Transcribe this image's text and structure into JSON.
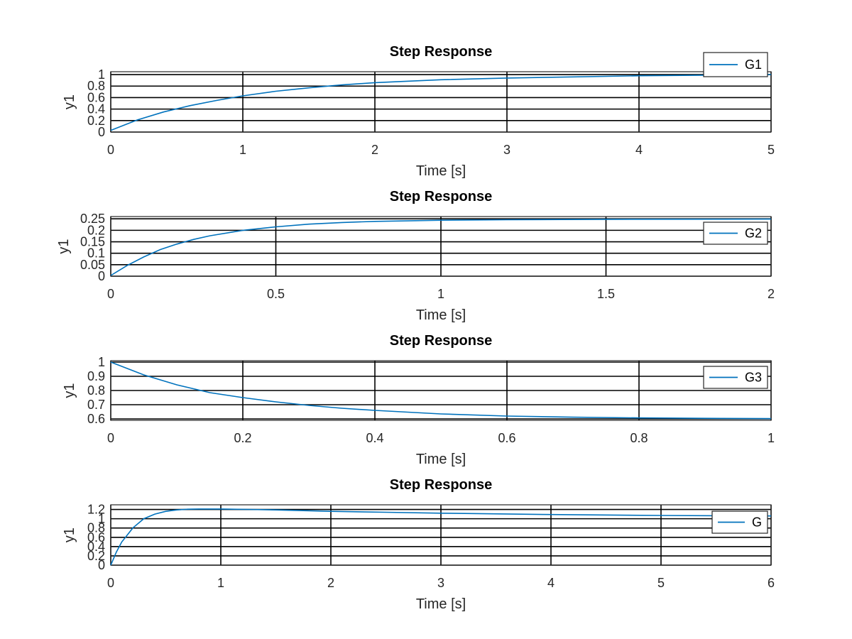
{
  "line_color": "#0072bd",
  "grid_color": "#000000",
  "chart_data": [
    {
      "type": "line",
      "title": "Step Response",
      "xlabel": "Time [s]",
      "ylabel": "y1",
      "xlim": [
        0,
        5
      ],
      "ylim": [
        0,
        1.05
      ],
      "xticks": [
        0,
        1,
        2,
        3,
        4,
        5
      ],
      "xtick_labels": [
        "0",
        "1",
        "2",
        "3",
        "4",
        "5"
      ],
      "yticks": [
        0,
        0.2,
        0.4,
        0.6,
        0.8,
        1
      ],
      "ytick_labels": [
        "0",
        "0.2",
        "0.4",
        "0.6",
        "0.8",
        "1"
      ],
      "grid": true,
      "legend_position": "top-right",
      "series": [
        {
          "name": "G1",
          "x": [
            0,
            0.2,
            0.4,
            0.6,
            0.8,
            1.0,
            1.25,
            1.5,
            1.75,
            2.0,
            2.5,
            3.0,
            3.5,
            4.0,
            4.5,
            5.0
          ],
          "y": [
            0.03,
            0.21,
            0.35,
            0.46,
            0.55,
            0.63,
            0.71,
            0.77,
            0.82,
            0.86,
            0.91,
            0.94,
            0.96,
            0.98,
            0.99,
            1.0
          ]
        }
      ]
    },
    {
      "type": "line",
      "title": "Step Response",
      "xlabel": "Time [s]",
      "ylabel": "y1",
      "xlim": [
        0,
        2
      ],
      "ylim": [
        0,
        0.26
      ],
      "xticks": [
        0,
        0.5,
        1,
        1.5,
        2
      ],
      "xtick_labels": [
        "0",
        "0.5",
        "1",
        "1.5",
        "2"
      ],
      "yticks": [
        0,
        0.05,
        0.1,
        0.15,
        0.2,
        0.25
      ],
      "ytick_labels": [
        "0",
        "0.05",
        "0.1",
        "0.15",
        "0.2",
        "0.25"
      ],
      "grid": true,
      "legend_position": "right",
      "series": [
        {
          "name": "G2",
          "x": [
            0,
            0.05,
            0.1,
            0.15,
            0.2,
            0.25,
            0.3,
            0.4,
            0.5,
            0.6,
            0.7,
            0.8,
            1.0,
            1.2,
            1.5,
            2.0
          ],
          "y": [
            0.003,
            0.047,
            0.084,
            0.116,
            0.14,
            0.16,
            0.176,
            0.2,
            0.215,
            0.227,
            0.234,
            0.239,
            0.244,
            0.246,
            0.248,
            0.249
          ]
        }
      ]
    },
    {
      "type": "line",
      "title": "Step Response",
      "xlabel": "Time [s]",
      "ylabel": "y1",
      "xlim": [
        0,
        1
      ],
      "ylim": [
        0.59,
        1.01
      ],
      "xticks": [
        0,
        0.2,
        0.4,
        0.6,
        0.8,
        1
      ],
      "xtick_labels": [
        "0",
        "0.2",
        "0.4",
        "0.6",
        "0.8",
        "1"
      ],
      "yticks": [
        0.6,
        0.7,
        0.8,
        0.9,
        1
      ],
      "ytick_labels": [
        "0.6",
        "0.7",
        "0.8",
        "0.9",
        "1"
      ],
      "grid": true,
      "legend_position": "right",
      "series": [
        {
          "name": "G3",
          "x": [
            0,
            0.05,
            0.1,
            0.15,
            0.2,
            0.25,
            0.3,
            0.35,
            0.4,
            0.5,
            0.6,
            0.7,
            0.8,
            0.9,
            1.0
          ],
          "y": [
            1.0,
            0.91,
            0.84,
            0.785,
            0.75,
            0.72,
            0.695,
            0.675,
            0.66,
            0.635,
            0.62,
            0.612,
            0.607,
            0.604,
            0.602
          ]
        }
      ]
    },
    {
      "type": "line",
      "title": "Step Response",
      "xlabel": "Time [s]",
      "ylabel": "y1",
      "xlim": [
        0,
        6
      ],
      "ylim": [
        0,
        1.3
      ],
      "xticks": [
        0,
        1,
        2,
        3,
        4,
        5,
        6
      ],
      "xtick_labels": [
        "0",
        "1",
        "2",
        "3",
        "4",
        "5",
        "6"
      ],
      "yticks": [
        0,
        0.2,
        0.4,
        0.6,
        0.8,
        1,
        1.2
      ],
      "ytick_labels": [
        "0",
        "0.2",
        "0.4",
        "0.6",
        "0.8",
        "1",
        "1.2"
      ],
      "grid": true,
      "legend_position": "right",
      "series": [
        {
          "name": "G",
          "x": [
            0,
            0.05,
            0.1,
            0.15,
            0.2,
            0.3,
            0.4,
            0.5,
            0.6,
            0.7,
            0.8,
            1.0,
            1.25,
            1.5,
            2.0,
            2.5,
            3.0,
            4.0,
            5.0,
            6.0
          ],
          "y": [
            0.0,
            0.28,
            0.5,
            0.65,
            0.8,
            1.0,
            1.1,
            1.16,
            1.19,
            1.205,
            1.21,
            1.21,
            1.2,
            1.19,
            1.16,
            1.14,
            1.12,
            1.09,
            1.07,
            1.06
          ]
        }
      ]
    }
  ]
}
